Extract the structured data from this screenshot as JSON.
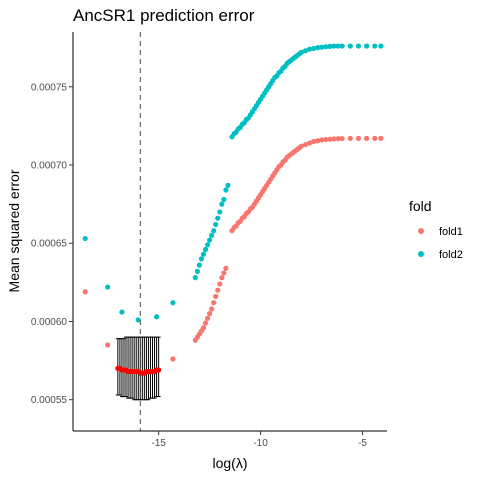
{
  "chart_data": {
    "type": "scatter",
    "title": "AncSR1 prediction error",
    "xlabel": "log(λ)",
    "ylabel": "Mean squared error",
    "xlim": [
      -19.2,
      -3.8
    ],
    "ylim": [
      0.00053,
      0.000785
    ],
    "x_ticks": [
      {
        "value": -15,
        "label": "-15"
      },
      {
        "value": -10,
        "label": "-10"
      },
      {
        "value": -5,
        "label": "-5"
      }
    ],
    "y_ticks": [
      {
        "value": 0.00055,
        "label": "0.00055"
      },
      {
        "value": 0.0006,
        "label": "0.00060"
      },
      {
        "value": 0.00065,
        "label": "0.00065"
      },
      {
        "value": 0.0007,
        "label": "0.00070"
      },
      {
        "value": 0.00075,
        "label": "0.00075"
      }
    ],
    "grid": false,
    "legend": {
      "title": "fold",
      "position": "right"
    },
    "vline": {
      "x": -15.9,
      "style": "dashed",
      "color": "#4d4d4d"
    },
    "series": [
      {
        "name": "fold1",
        "color": "#F8766D",
        "points": [
          [
            -18.6,
            0.000619
          ],
          [
            -17.5,
            0.000585
          ],
          [
            -14.3,
            0.000576
          ],
          [
            -13.2,
            0.000588
          ],
          [
            -13.1,
            0.00059
          ],
          [
            -13.0,
            0.000592
          ],
          [
            -12.9,
            0.000594
          ],
          [
            -12.8,
            0.000596
          ],
          [
            -12.7,
            0.000599
          ],
          [
            -12.6,
            0.000602
          ],
          [
            -12.5,
            0.000605
          ],
          [
            -12.4,
            0.000608
          ],
          [
            -12.3,
            0.000612
          ],
          [
            -12.2,
            0.000616
          ],
          [
            -12.1,
            0.00062
          ],
          [
            -12.0,
            0.000624
          ],
          [
            -11.9,
            0.000628
          ],
          [
            -11.8,
            0.000631
          ],
          [
            -11.7,
            0.000634
          ],
          [
            -11.4,
            0.000658
          ],
          [
            -11.3,
            0.00066
          ],
          [
            -11.2,
            0.000661
          ],
          [
            -11.1,
            0.000663
          ],
          [
            -11.0,
            0.000664
          ],
          [
            -10.9,
            0.000666
          ],
          [
            -10.8,
            0.000667
          ],
          [
            -10.7,
            0.000669
          ],
          [
            -10.6,
            0.00067
          ],
          [
            -10.5,
            0.000672
          ],
          [
            -10.4,
            0.000673
          ],
          [
            -10.3,
            0.000675
          ],
          [
            -10.2,
            0.000677
          ],
          [
            -10.1,
            0.000679
          ],
          [
            -10.0,
            0.000681
          ],
          [
            -9.9,
            0.000683
          ],
          [
            -9.8,
            0.000685
          ],
          [
            -9.7,
            0.000687
          ],
          [
            -9.6,
            0.000689
          ],
          [
            -9.5,
            0.000691
          ],
          [
            -9.4,
            0.000693
          ],
          [
            -9.3,
            0.000695
          ],
          [
            -9.2,
            0.000697
          ],
          [
            -9.1,
            0.000699
          ],
          [
            -9.0,
            0.0007
          ],
          [
            -8.9,
            0.000702
          ],
          [
            -8.8,
            0.000703
          ],
          [
            -8.7,
            0.000705
          ],
          [
            -8.6,
            0.000706
          ],
          [
            -8.5,
            0.000707
          ],
          [
            -8.4,
            0.000708
          ],
          [
            -8.3,
            0.000709
          ],
          [
            -8.2,
            0.00071
          ],
          [
            -8.1,
            0.000711
          ],
          [
            -8.0,
            0.000712
          ],
          [
            -7.8,
            0.000713
          ],
          [
            -7.6,
            0.000714
          ],
          [
            -7.4,
            0.000715
          ],
          [
            -7.2,
            0.0007155
          ],
          [
            -7.0,
            0.000716
          ],
          [
            -6.8,
            0.0007163
          ],
          [
            -6.6,
            0.0007165
          ],
          [
            -6.4,
            0.0007167
          ],
          [
            -6.2,
            0.0007168
          ],
          [
            -6.0,
            0.0007169
          ],
          [
            -5.6,
            0.000717
          ],
          [
            -5.2,
            0.000717
          ],
          [
            -4.8,
            0.000717
          ],
          [
            -4.4,
            0.000717
          ],
          [
            -4.1,
            0.000717
          ]
        ]
      },
      {
        "name": "fold2",
        "color": "#00BFC4",
        "points": [
          [
            -18.6,
            0.000653
          ],
          [
            -17.5,
            0.000622
          ],
          [
            -16.8,
            0.000606
          ],
          [
            -16.0,
            0.000601
          ],
          [
            -15.1,
            0.000603
          ],
          [
            -14.3,
            0.000612
          ],
          [
            -13.2,
            0.000628
          ],
          [
            -13.1,
            0.000632
          ],
          [
            -13.0,
            0.000636
          ],
          [
            -12.9,
            0.00064
          ],
          [
            -12.8,
            0.000643
          ],
          [
            -12.7,
            0.000646
          ],
          [
            -12.6,
            0.000649
          ],
          [
            -12.5,
            0.000652
          ],
          [
            -12.4,
            0.000655
          ],
          [
            -12.3,
            0.000658
          ],
          [
            -12.2,
            0.000662
          ],
          [
            -12.1,
            0.000666
          ],
          [
            -12.0,
            0.00067
          ],
          [
            -11.9,
            0.000675
          ],
          [
            -11.8,
            0.000678
          ],
          [
            -11.7,
            0.000684
          ],
          [
            -11.6,
            0.000687
          ],
          [
            -11.4,
            0.000718
          ],
          [
            -11.3,
            0.00072
          ],
          [
            -11.2,
            0.000721
          ],
          [
            -11.1,
            0.000723
          ],
          [
            -11.0,
            0.000724
          ],
          [
            -10.9,
            0.000726
          ],
          [
            -10.8,
            0.000727
          ],
          [
            -10.7,
            0.000729
          ],
          [
            -10.6,
            0.00073
          ],
          [
            -10.5,
            0.000732
          ],
          [
            -10.4,
            0.000734
          ],
          [
            -10.3,
            0.000736
          ],
          [
            -10.2,
            0.000738
          ],
          [
            -10.1,
            0.00074
          ],
          [
            -10.0,
            0.000742
          ],
          [
            -9.9,
            0.000744
          ],
          [
            -9.8,
            0.000746
          ],
          [
            -9.7,
            0.000748
          ],
          [
            -9.6,
            0.00075
          ],
          [
            -9.5,
            0.000752
          ],
          [
            -9.4,
            0.000754
          ],
          [
            -9.3,
            0.000756
          ],
          [
            -9.2,
            0.000757
          ],
          [
            -9.1,
            0.000759
          ],
          [
            -9.0,
            0.00076
          ],
          [
            -8.9,
            0.000762
          ],
          [
            -8.8,
            0.000763
          ],
          [
            -8.7,
            0.000765
          ],
          [
            -8.6,
            0.000766
          ],
          [
            -8.5,
            0.000767
          ],
          [
            -8.4,
            0.000768
          ],
          [
            -8.3,
            0.000769
          ],
          [
            -8.2,
            0.00077
          ],
          [
            -8.1,
            0.000771
          ],
          [
            -8.0,
            0.000772
          ],
          [
            -7.8,
            0.000773
          ],
          [
            -7.6,
            0.000774
          ],
          [
            -7.4,
            0.0007745
          ],
          [
            -7.2,
            0.000775
          ],
          [
            -7.0,
            0.0007753
          ],
          [
            -6.8,
            0.0007756
          ],
          [
            -6.6,
            0.0007758
          ],
          [
            -6.4,
            0.000776
          ],
          [
            -6.2,
            0.000776
          ],
          [
            -6.0,
            0.000776
          ],
          [
            -5.6,
            0.000776
          ],
          [
            -5.2,
            0.000776
          ],
          [
            -4.8,
            0.000776
          ],
          [
            -4.4,
            0.000776
          ],
          [
            -4.1,
            0.000776
          ]
        ]
      }
    ],
    "mean_with_errorbars": {
      "color": "#FF0000",
      "errorbar_color": "#000000",
      "points": [
        [
          -17.0,
          0.00057,
          0.000553,
          0.000589
        ],
        [
          -16.9,
          0.00057,
          0.000553,
          0.000589
        ],
        [
          -16.8,
          0.000569,
          0.000552,
          0.000589
        ],
        [
          -16.7,
          0.000569,
          0.000552,
          0.000589
        ],
        [
          -16.6,
          0.000569,
          0.000552,
          0.00059
        ],
        [
          -16.5,
          0.000568,
          0.000551,
          0.00059
        ],
        [
          -16.4,
          0.000568,
          0.000551,
          0.00059
        ],
        [
          -16.3,
          0.000568,
          0.000551,
          0.00059
        ],
        [
          -16.2,
          0.000568,
          0.00055,
          0.00059
        ],
        [
          -16.1,
          0.000568,
          0.00055,
          0.00059
        ],
        [
          -16.0,
          0.000568,
          0.00055,
          0.00059
        ],
        [
          -15.9,
          0.000567,
          0.00055,
          0.00059
        ],
        [
          -15.8,
          0.000567,
          0.00055,
          0.00059
        ],
        [
          -15.7,
          0.000567,
          0.00055,
          0.00059
        ],
        [
          -15.6,
          0.000568,
          0.00055,
          0.00059
        ],
        [
          -15.5,
          0.000568,
          0.00055,
          0.00059
        ],
        [
          -15.4,
          0.000568,
          0.000551,
          0.00059
        ],
        [
          -15.3,
          0.000568,
          0.000551,
          0.00059
        ],
        [
          -15.2,
          0.000568,
          0.000551,
          0.00059
        ],
        [
          -15.1,
          0.000569,
          0.000552,
          0.00059
        ],
        [
          -15.0,
          0.000569,
          0.000552,
          0.00059
        ]
      ]
    }
  }
}
